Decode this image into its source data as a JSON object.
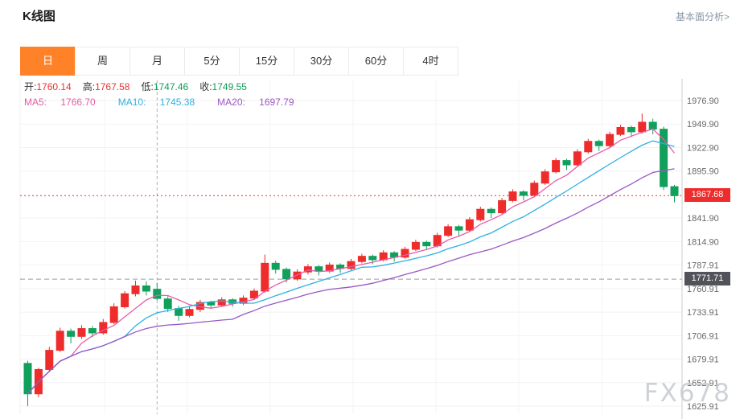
{
  "header": {
    "title": "K线图",
    "link": "基本面分析>"
  },
  "tabs": {
    "items": [
      {
        "label": "日",
        "active": true
      },
      {
        "label": "周",
        "active": false
      },
      {
        "label": "月",
        "active": false
      },
      {
        "label": "5分",
        "active": false
      },
      {
        "label": "15分",
        "active": false
      },
      {
        "label": "30分",
        "active": false
      },
      {
        "label": "60分",
        "active": false
      },
      {
        "label": "4时",
        "active": false
      }
    ]
  },
  "ohlc": {
    "open_label": "开:",
    "open": "1760.14",
    "high_label": "高:",
    "high": "1767.58",
    "low_label": "低:",
    "low": "1747.46",
    "close_label": "收:",
    "close": "1749.55"
  },
  "ma": {
    "ma5_label": "MA5: ",
    "ma5": "1766.70",
    "ma10_label": "MA10: ",
    "ma10": "1745.38",
    "ma20_label": "MA20: ",
    "ma20": "1697.79"
  },
  "watermark": "FX678",
  "colors": {
    "up": "#ee2c2c",
    "down": "#11a05c",
    "ma5": "#e65ca8",
    "ma10": "#2fb0e2",
    "ma20": "#9a57c4",
    "tab_active": "#ff8228",
    "last_price_badge": "#ee2c2c",
    "ref_price_badge": "#52535a"
  },
  "chart_data": {
    "type": "candlestick",
    "title": "K线图 (Daily gold K-line)",
    "last_price": 1867.68,
    "ref_price": 1771.71,
    "crosshair_index": 12,
    "y_ticks": [
      1976.9,
      1949.9,
      1922.9,
      1895.9,
      1841.9,
      1814.9,
      1787.91,
      1760.91,
      1733.91,
      1706.91,
      1679.91,
      1652.91,
      1625.91
    ],
    "y_range": [
      1622,
      1990
    ],
    "ma_periods": [
      5,
      10,
      20
    ],
    "candles": [
      [
        1675,
        1678,
        1626,
        1640
      ],
      [
        1640,
        1670,
        1636,
        1668
      ],
      [
        1668,
        1694,
        1665,
        1690
      ],
      [
        1690,
        1716,
        1688,
        1712
      ],
      [
        1712,
        1715,
        1698,
        1706
      ],
      [
        1706,
        1719,
        1703,
        1715
      ],
      [
        1715,
        1718,
        1705,
        1710
      ],
      [
        1710,
        1726,
        1708,
        1722
      ],
      [
        1722,
        1744,
        1720,
        1740
      ],
      [
        1740,
        1758,
        1738,
        1755
      ],
      [
        1755,
        1770,
        1752,
        1764
      ],
      [
        1764,
        1769,
        1753,
        1758
      ],
      [
        1760.14,
        1767.58,
        1747.46,
        1749.55
      ],
      [
        1749,
        1752,
        1734,
        1738
      ],
      [
        1738,
        1741,
        1724,
        1730
      ],
      [
        1730,
        1740,
        1728,
        1737
      ],
      [
        1737,
        1748,
        1734,
        1745
      ],
      [
        1745,
        1747,
        1738,
        1742
      ],
      [
        1742,
        1751,
        1740,
        1748
      ],
      [
        1748,
        1750,
        1740,
        1744
      ],
      [
        1744,
        1753,
        1742,
        1750
      ],
      [
        1750,
        1761,
        1748,
        1758
      ],
      [
        1758,
        1800,
        1756,
        1790
      ],
      [
        1790,
        1793,
        1778,
        1783
      ],
      [
        1783,
        1785,
        1768,
        1772
      ],
      [
        1772,
        1783,
        1770,
        1780
      ],
      [
        1780,
        1789,
        1777,
        1786
      ],
      [
        1786,
        1788,
        1776,
        1781
      ],
      [
        1781,
        1791,
        1779,
        1788
      ],
      [
        1788,
        1790,
        1779,
        1784
      ],
      [
        1784,
        1795,
        1782,
        1792
      ],
      [
        1792,
        1801,
        1790,
        1798
      ],
      [
        1798,
        1800,
        1789,
        1794
      ],
      [
        1794,
        1805,
        1792,
        1802
      ],
      [
        1802,
        1804,
        1792,
        1797
      ],
      [
        1797,
        1809,
        1795,
        1806
      ],
      [
        1806,
        1817,
        1804,
        1814
      ],
      [
        1814,
        1816,
        1805,
        1810
      ],
      [
        1810,
        1825,
        1808,
        1822
      ],
      [
        1822,
        1835,
        1820,
        1832
      ],
      [
        1832,
        1834,
        1822,
        1828
      ],
      [
        1828,
        1843,
        1826,
        1840
      ],
      [
        1840,
        1855,
        1838,
        1852
      ],
      [
        1852,
        1854,
        1842,
        1848
      ],
      [
        1848,
        1865,
        1846,
        1862
      ],
      [
        1862,
        1875,
        1860,
        1872
      ],
      [
        1872,
        1874,
        1862,
        1868
      ],
      [
        1868,
        1885,
        1866,
        1882
      ],
      [
        1882,
        1898,
        1880,
        1895
      ],
      [
        1895,
        1911,
        1893,
        1908
      ],
      [
        1908,
        1910,
        1897,
        1903
      ],
      [
        1903,
        1921,
        1901,
        1918
      ],
      [
        1918,
        1933,
        1916,
        1930
      ],
      [
        1930,
        1932,
        1919,
        1925
      ],
      [
        1925,
        1941,
        1923,
        1938
      ],
      [
        1938,
        1949,
        1936,
        1946
      ],
      [
        1946,
        1948,
        1935,
        1941
      ],
      [
        1941,
        1962,
        1939,
        1952
      ],
      [
        1952,
        1956,
        1938,
        1944
      ],
      [
        1944,
        1947,
        1874,
        1878
      ],
      [
        1878,
        1880,
        1860,
        1867.68
      ]
    ]
  }
}
